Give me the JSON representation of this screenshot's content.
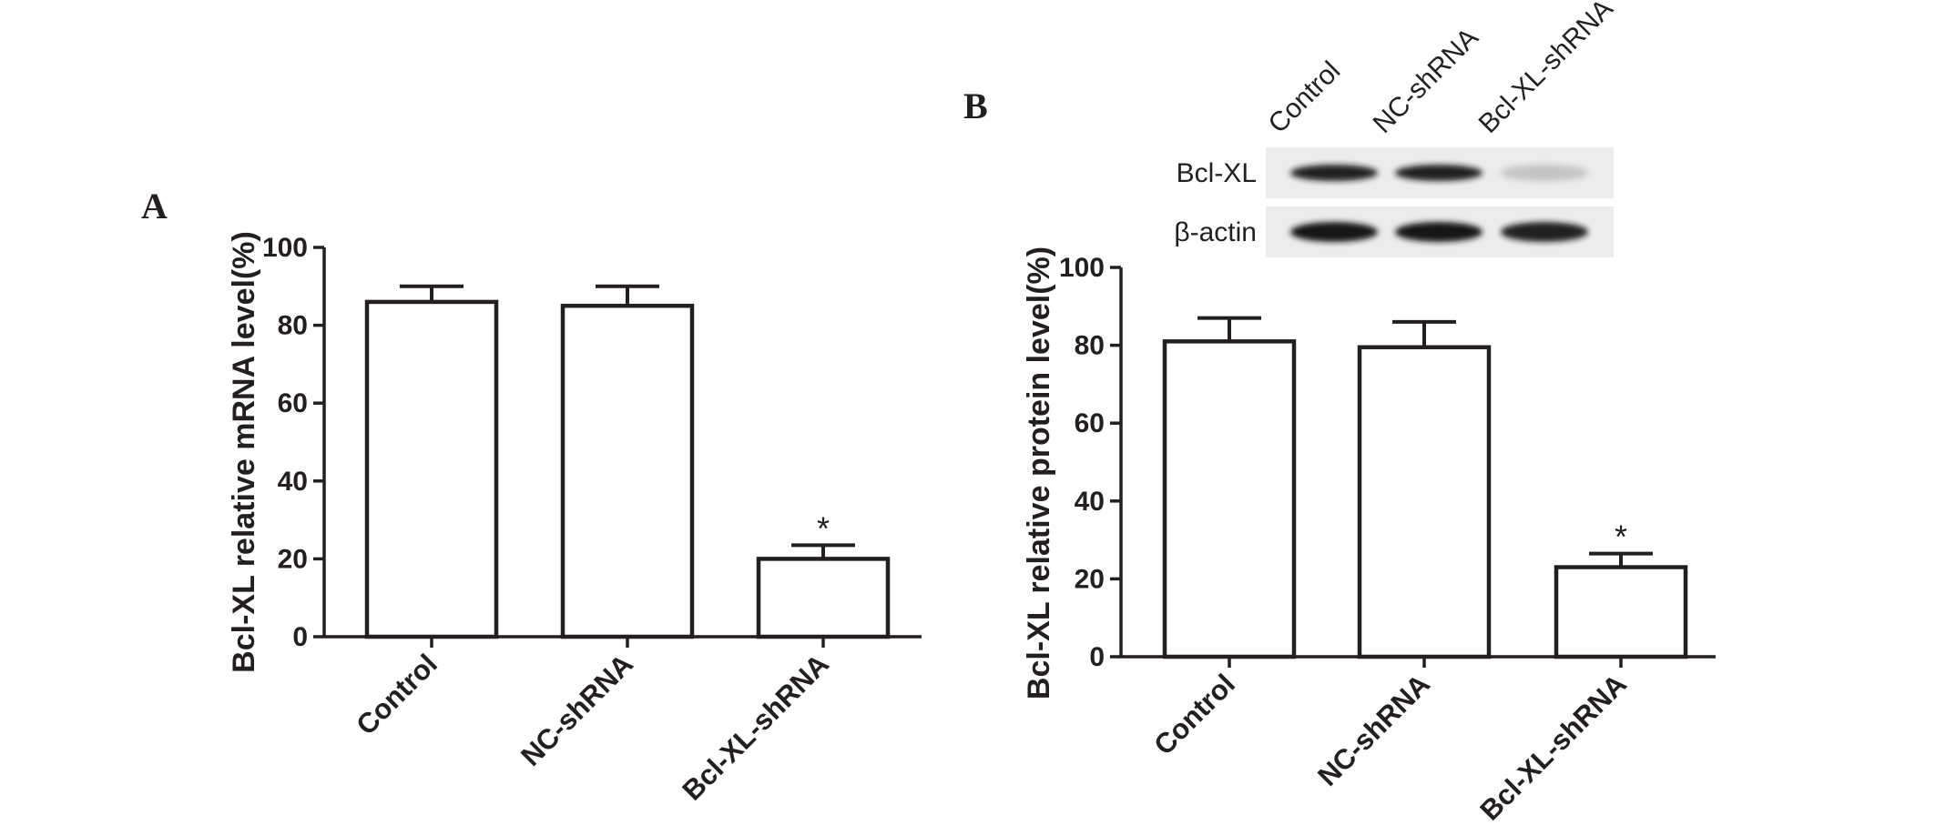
{
  "chart_data": [
    {
      "panel": "A",
      "type": "bar",
      "categories": [
        "Control",
        "NC-shRNA",
        "Bcl-XL-shRNA"
      ],
      "values": [
        86,
        85,
        20
      ],
      "errors": [
        4,
        5,
        3.5
      ],
      "annotations": [
        "",
        "",
        "*"
      ],
      "ylabel": "Bcl-XL relative mRNA level(%)",
      "ylim": [
        0,
        100
      ],
      "yticks": [
        0,
        20,
        40,
        60,
        80,
        100
      ],
      "grid": false
    },
    {
      "panel": "B",
      "type": "bar",
      "categories": [
        "Control",
        "NC-shRNA",
        "Bcl-XL-shRNA"
      ],
      "values": [
        81,
        79.5,
        23
      ],
      "errors": [
        6,
        6.5,
        3.5
      ],
      "annotations": [
        "",
        "",
        "*"
      ],
      "ylabel": "Bcl-XL relative protein level(%)",
      "ylim": [
        0,
        100
      ],
      "yticks": [
        0,
        20,
        40,
        60,
        80,
        100
      ],
      "grid": false
    }
  ],
  "blot": {
    "lanes": [
      "Control",
      "NC-shRNA",
      "Bcl-XL-shRNA"
    ],
    "rows": [
      {
        "label": "Bcl-XL",
        "intensity": [
          0.95,
          0.95,
          0.18
        ]
      },
      {
        "label": "β-actin",
        "intensity": [
          1.0,
          1.0,
          0.95
        ]
      }
    ]
  },
  "colors": {
    "ink": "#231f20",
    "bar_fill": "#ffffff",
    "blot_bg": "#ececec",
    "band": "#141414"
  }
}
